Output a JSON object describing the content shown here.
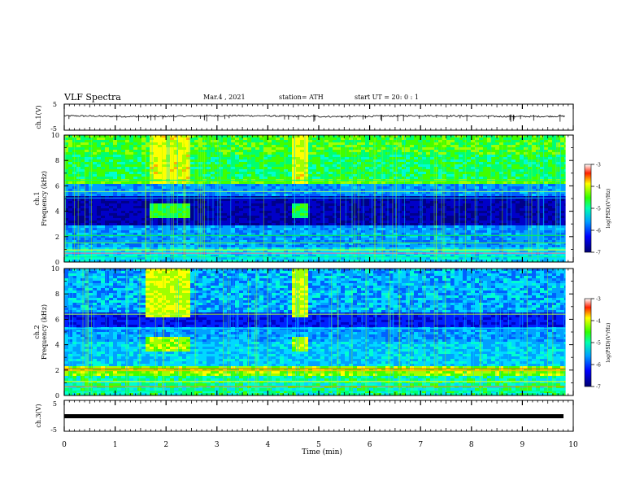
{
  "header": {
    "title": "VLF Spectra",
    "date": "Mar.4  , 2021",
    "station": "station= ATH",
    "start_time": "start  UT =   20: 0  : 1"
  },
  "chart_data": [
    {
      "type": "line",
      "panel": "ch1-waveform",
      "ylabel": "ch.1(V)",
      "ylim": [
        -5,
        5
      ],
      "yticks": [
        "5",
        "-5"
      ],
      "description_values": {
        "baseline_v": 0.4,
        "noise_amplitude_v": 0.3
      }
    },
    {
      "type": "heatmap",
      "panel": "ch1-spectrogram",
      "ylabel_lines": [
        "ch.1",
        "Frequency (kHz)"
      ],
      "ylim": [
        0,
        10
      ],
      "yticks": [
        "0",
        "2",
        "4",
        "6",
        "8",
        "10"
      ],
      "xlim": [
        0,
        10
      ],
      "bursts_min": [
        [
          1.65,
          2.45
        ],
        [
          4.45,
          4.8
        ]
      ],
      "colorbar": {
        "label": "log(PSD)(V²/Hz)",
        "range": [
          -7,
          -3
        ],
        "ticks": [
          "-3",
          "-4",
          "-5",
          "-6",
          "-7"
        ]
      }
    },
    {
      "type": "heatmap",
      "panel": "ch2-spectrogram",
      "ylabel_lines": [
        "ch.2",
        "Frequency (kHz)"
      ],
      "ylim": [
        0,
        10
      ],
      "yticks": [
        "0",
        "2",
        "4",
        "6",
        "8",
        "10"
      ],
      "xlim": [
        0,
        10
      ],
      "bursts_min": [
        [
          1.6,
          2.45
        ],
        [
          4.45,
          4.8
        ]
      ],
      "colorbar": {
        "label": "log(PSD)(V²/Hz)",
        "range": [
          -7,
          -3
        ],
        "ticks": [
          "-3",
          "-4",
          "-5",
          "-6",
          "-7"
        ]
      }
    },
    {
      "type": "line",
      "panel": "ch3-waveform",
      "ylabel": "ch.3(V)",
      "ylim": [
        -5,
        5
      ],
      "yticks": [
        "5",
        "-5"
      ],
      "description_values": {
        "baseline_v": 0.0
      }
    }
  ],
  "xaxis": {
    "label": "Time  (min)",
    "range": [
      0,
      10
    ],
    "ticks": [
      "0",
      "1",
      "2",
      "3",
      "4",
      "5",
      "6",
      "7",
      "8",
      "9",
      "10"
    ],
    "data_end_min": 9.85
  },
  "colors": {
    "spectrum": [
      "#00007a",
      "#0000ff",
      "#0080ff",
      "#00ffff",
      "#00ff40",
      "#ffff00",
      "#ff0000"
    ]
  }
}
